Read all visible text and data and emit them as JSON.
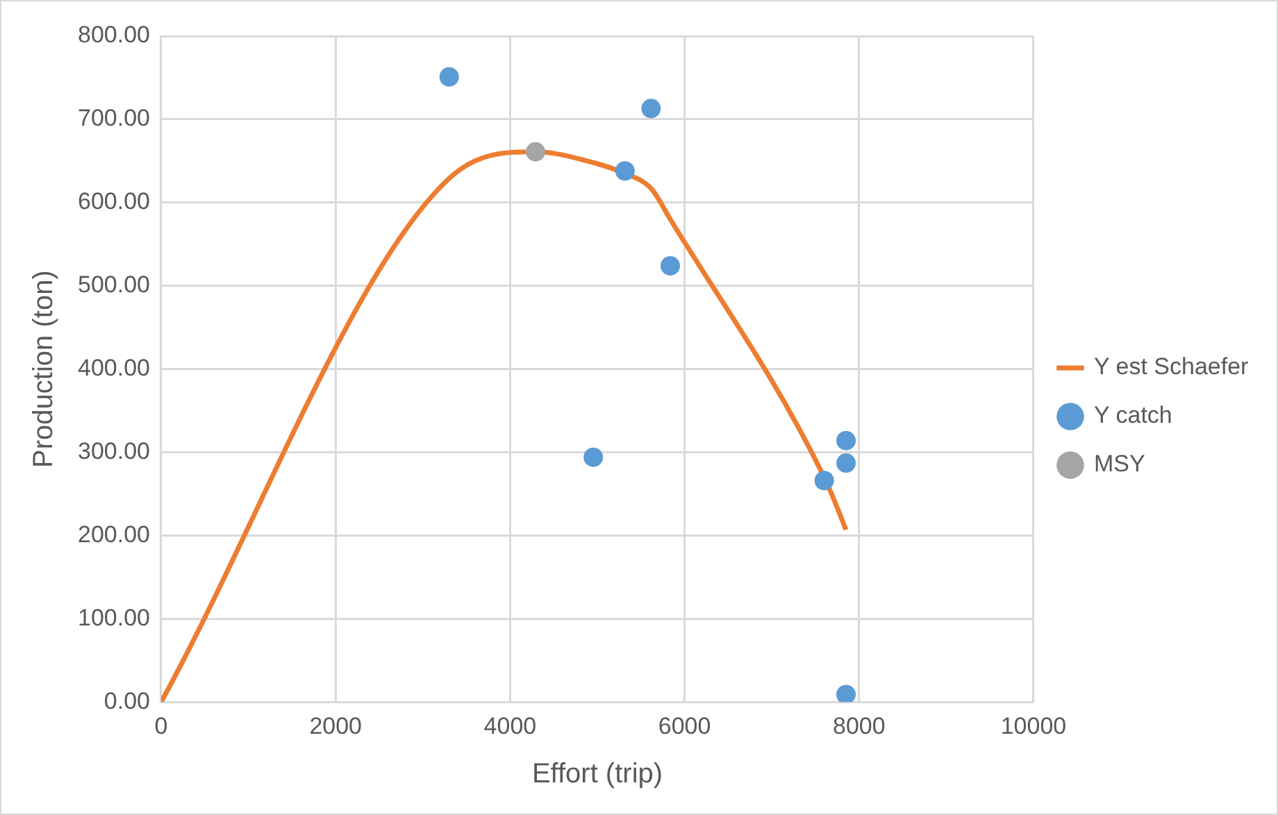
{
  "chart_data": {
    "type": "scatter",
    "xlabel": "Effort (trip)",
    "ylabel": "Production (ton)",
    "xlim": [
      0,
      10000
    ],
    "xticks": [
      0,
      2000,
      4000,
      6000,
      8000,
      10000
    ],
    "ylim": [
      0,
      800
    ],
    "yticks": [
      {
        "value": 0,
        "label": "0.00"
      },
      {
        "value": 100,
        "label": "100.00"
      },
      {
        "value": 200,
        "label": "200.00"
      },
      {
        "value": 300,
        "label": "300.00"
      },
      {
        "value": 400,
        "label": "400.00"
      },
      {
        "value": 500,
        "label": "500.00"
      },
      {
        "value": 600,
        "label": "600.00"
      },
      {
        "value": 700,
        "label": "700.00"
      },
      {
        "value": 800,
        "label": "800.00"
      }
    ],
    "grid": true,
    "legend": "right",
    "marker": "circle",
    "series": [
      {
        "name": "Y est Schaefer",
        "type": "line",
        "color": "#ed7d31",
        "marker": "none",
        "x": [
          0,
          3302,
          4292,
          4954,
          5317,
          5616,
          5836,
          7601,
          7851
        ],
        "values": [
          0,
          629,
          661,
          648,
          635,
          617,
          580,
          270,
          207
        ]
      },
      {
        "name": "Y catch",
        "color": "#5b9bd5",
        "x": [
          3302,
          5616,
          5317,
          5836,
          4954,
          7851,
          7851,
          7601,
          7851
        ],
        "values": [
          751,
          713,
          638,
          524,
          294,
          314,
          287,
          266,
          9
        ]
      },
      {
        "name": "MSY",
        "color": "#a5a5a5",
        "x": [
          4292
        ],
        "values": [
          661
        ]
      }
    ]
  }
}
